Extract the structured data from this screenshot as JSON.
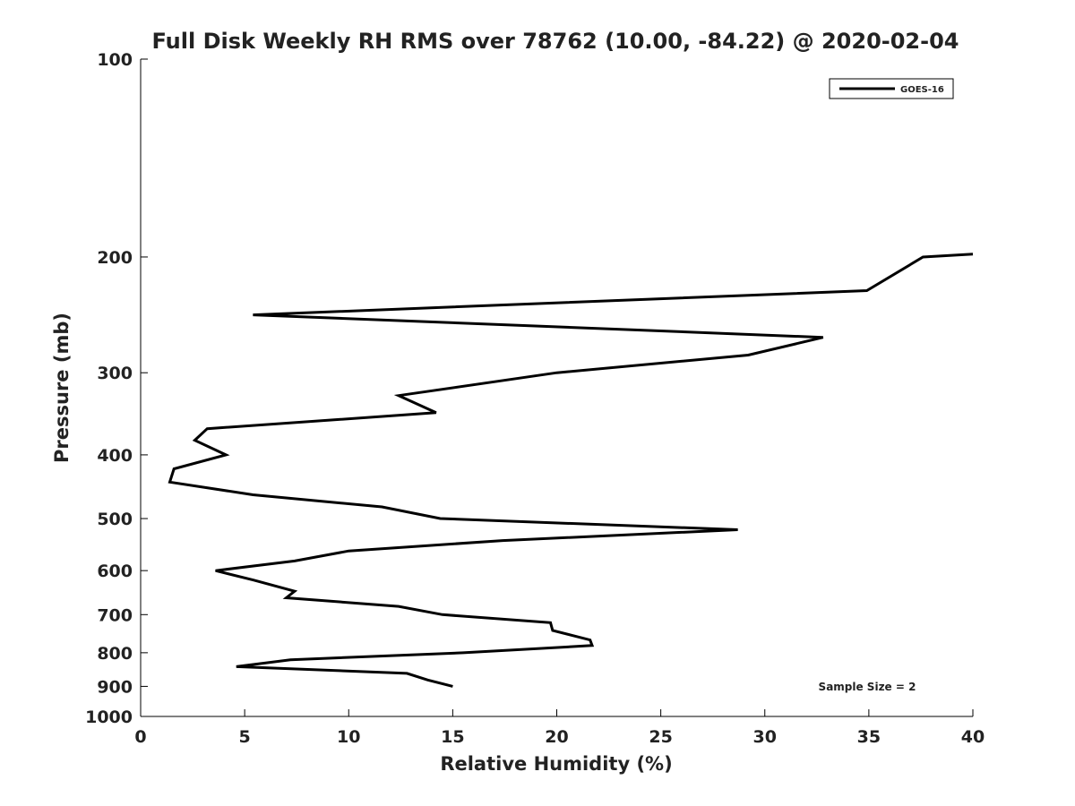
{
  "chart_data": {
    "type": "line",
    "title": "Full Disk Weekly RH RMS over 78762 (10.00, -84.22) @ 2020-02-04",
    "xlabel": "Relative Humidity (%)",
    "ylabel": "Pressure (mb)",
    "xlim": [
      0,
      40
    ],
    "ylim": [
      1000,
      100
    ],
    "yscale": "log",
    "x_ticks": [
      0,
      5,
      10,
      15,
      20,
      25,
      30,
      35,
      40
    ],
    "x_tick_labels": [
      "0",
      "5",
      "10",
      "15",
      "20",
      "25",
      "30",
      "35",
      "40"
    ],
    "y_ticks": [
      100,
      200,
      300,
      400,
      500,
      600,
      700,
      800,
      900,
      1000
    ],
    "y_tick_labels": [
      "100",
      "200",
      "300",
      "400",
      "500",
      "600",
      "700",
      "800",
      "900",
      "1000"
    ],
    "legend_position": "top-right",
    "annotation": "Sample Size = 2",
    "series": [
      {
        "name": "GOES-16",
        "color": "#000000",
        "points": [
          {
            "x": 15.0,
            "p": 900
          },
          {
            "x": 13.8,
            "p": 880
          },
          {
            "x": 12.8,
            "p": 860
          },
          {
            "x": 4.6,
            "p": 840
          },
          {
            "x": 7.2,
            "p": 820
          },
          {
            "x": 15.5,
            "p": 800
          },
          {
            "x": 21.7,
            "p": 780
          },
          {
            "x": 21.6,
            "p": 765
          },
          {
            "x": 19.8,
            "p": 740
          },
          {
            "x": 19.7,
            "p": 720
          },
          {
            "x": 14.5,
            "p": 700
          },
          {
            "x": 12.4,
            "p": 680
          },
          {
            "x": 7.0,
            "p": 660
          },
          {
            "x": 7.4,
            "p": 645
          },
          {
            "x": 5.4,
            "p": 620
          },
          {
            "x": 3.6,
            "p": 600
          },
          {
            "x": 7.4,
            "p": 580
          },
          {
            "x": 10.0,
            "p": 560
          },
          {
            "x": 17.4,
            "p": 540
          },
          {
            "x": 28.7,
            "p": 520
          },
          {
            "x": 14.4,
            "p": 500
          },
          {
            "x": 11.6,
            "p": 480
          },
          {
            "x": 5.4,
            "p": 460
          },
          {
            "x": 1.4,
            "p": 440
          },
          {
            "x": 1.6,
            "p": 420
          },
          {
            "x": 4.1,
            "p": 400
          },
          {
            "x": 2.6,
            "p": 380
          },
          {
            "x": 3.2,
            "p": 365
          },
          {
            "x": 14.2,
            "p": 345
          },
          {
            "x": 12.4,
            "p": 325
          },
          {
            "x": 20.0,
            "p": 300
          },
          {
            "x": 29.2,
            "p": 282
          },
          {
            "x": 32.8,
            "p": 265
          },
          {
            "x": 5.4,
            "p": 245
          },
          {
            "x": 34.9,
            "p": 225
          },
          {
            "x": 37.6,
            "p": 200
          },
          {
            "x": 40.0,
            "p": 198
          }
        ]
      }
    ]
  }
}
